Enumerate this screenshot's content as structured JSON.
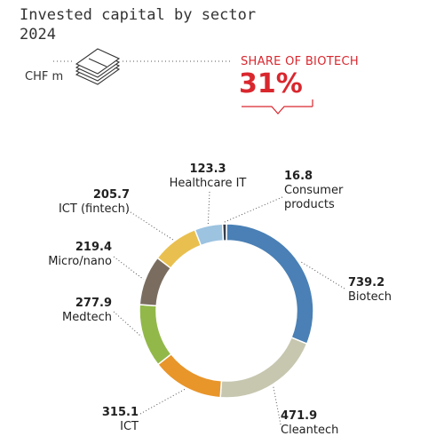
{
  "header": {
    "title_line1": "Invested capital by sector",
    "title_line2": "2024",
    "unit": "CHF m"
  },
  "share_callout": {
    "label": "SHARE OF BIOTECH",
    "value": "31%"
  },
  "colors": {
    "accent": "#d9272e",
    "text": "#222222",
    "leader": "#555555"
  },
  "icon": "banknote-stack-icon",
  "chart_data": {
    "type": "pie",
    "style": "donut",
    "title": "Invested capital by sector 2024",
    "unit": "CHF m",
    "categories": [
      "Biotech",
      "Cleantech",
      "ICT",
      "Medtech",
      "Micro/nano",
      "ICT (fintech)",
      "Healthcare IT",
      "Consumer products"
    ],
    "values": [
      739.2,
      471.9,
      315.1,
      277.9,
      219.4,
      205.7,
      123.3,
      16.8
    ],
    "value_labels": [
      "739.2",
      "471.9",
      "315.1",
      "277.9",
      "219.4",
      "205.7",
      "123.3",
      "16.8"
    ],
    "category_lines": [
      [
        "Biotech"
      ],
      [
        "Cleantech"
      ],
      [
        "ICT"
      ],
      [
        "Medtech"
      ],
      [
        "Micro/nano"
      ],
      [
        "ICT (fintech)"
      ],
      [
        "Healthcare IT"
      ],
      [
        "Consumer",
        "products"
      ]
    ],
    "colors": [
      "#4a80b5",
      "#c7c7b0",
      "#e8952a",
      "#92b84a",
      "#7a6d60",
      "#e9c04f",
      "#9cc3e0",
      "#333c4a"
    ]
  }
}
